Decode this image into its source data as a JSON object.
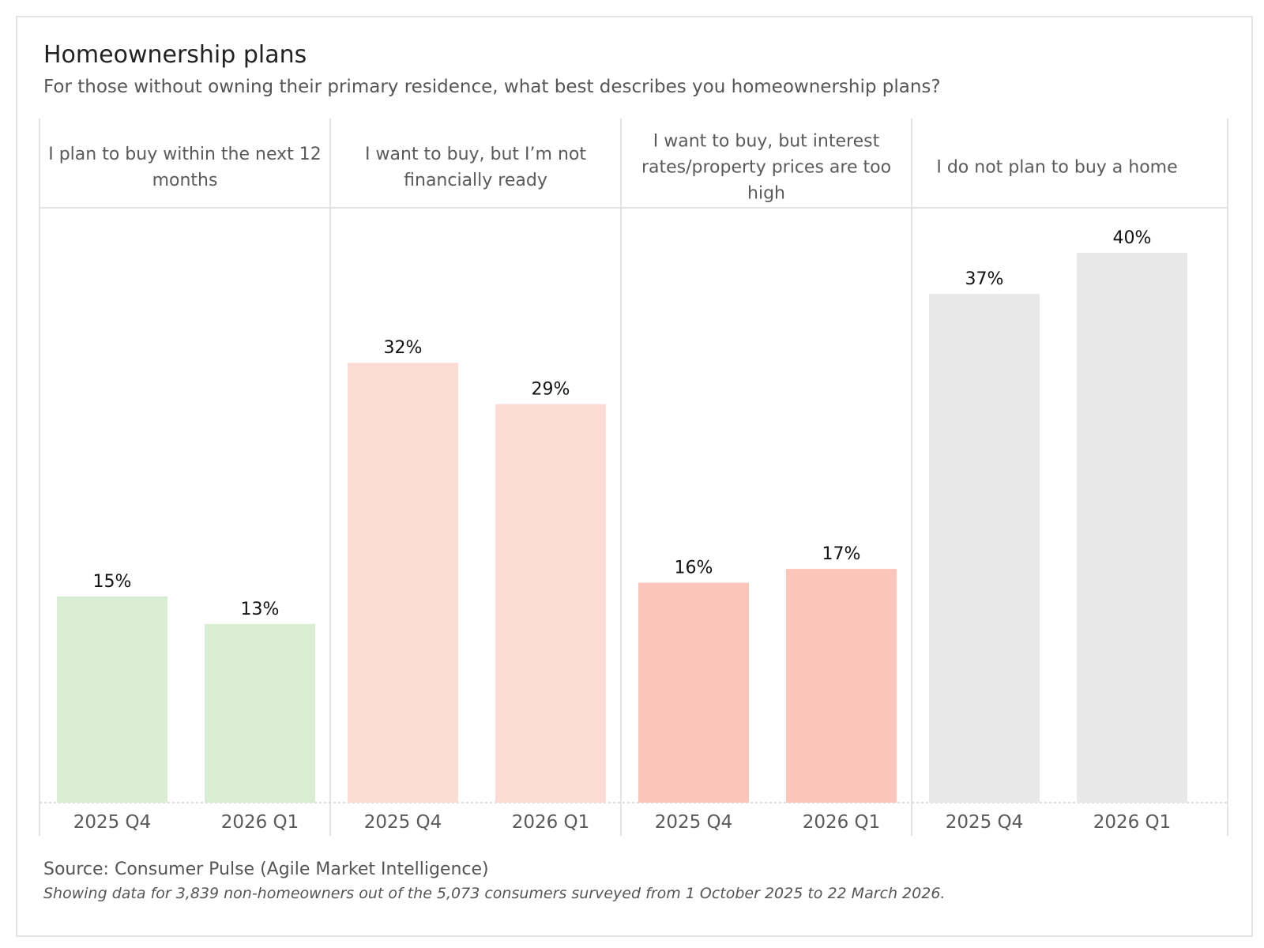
{
  "title": "Homeownership plans",
  "subtitle": "For those without owning their primary residence, what best describes you homeownership plans?",
  "source": "Source: Consumer Pulse (Agile Market Intelligence)",
  "note": "Showing data for 3,839 non-homeowners out of the 5,073 consumers surveyed from  1 October 2025 to 22 March 2026.",
  "chart_data": {
    "type": "bar",
    "title": "Homeownership plans",
    "ylim": [
      0,
      40
    ],
    "value_format": "percent",
    "grid": false,
    "panels": [
      {
        "header_lines": [
          "I plan to buy within the next 12",
          "months"
        ],
        "color": "#d8edd4",
        "categories": [
          "2025 Q4",
          "2026 Q1"
        ],
        "values": [
          15,
          13
        ],
        "labels": [
          "15%",
          "13%"
        ]
      },
      {
        "header_lines": [
          "I want to buy, but I’m not",
          "financially ready"
        ],
        "color": "#fddcd6",
        "categories": [
          "2025 Q4",
          "2026 Q1"
        ],
        "values": [
          32,
          29
        ],
        "labels": [
          "32%",
          "29%"
        ]
      },
      {
        "header_lines": [
          "I want to buy, but interest",
          "rates/property prices are too",
          "high"
        ],
        "color": "#fbc5b9",
        "categories": [
          "2025 Q4",
          "2026 Q1"
        ],
        "values": [
          16,
          17
        ],
        "labels": [
          "16%",
          "17%"
        ]
      },
      {
        "header_lines": [
          "I do not plan to buy a home"
        ],
        "color": "#e8e8e8",
        "categories": [
          "2025 Q4",
          "2026 Q1"
        ],
        "values": [
          37,
          40
        ],
        "labels": [
          "37%",
          "40%"
        ]
      }
    ]
  }
}
